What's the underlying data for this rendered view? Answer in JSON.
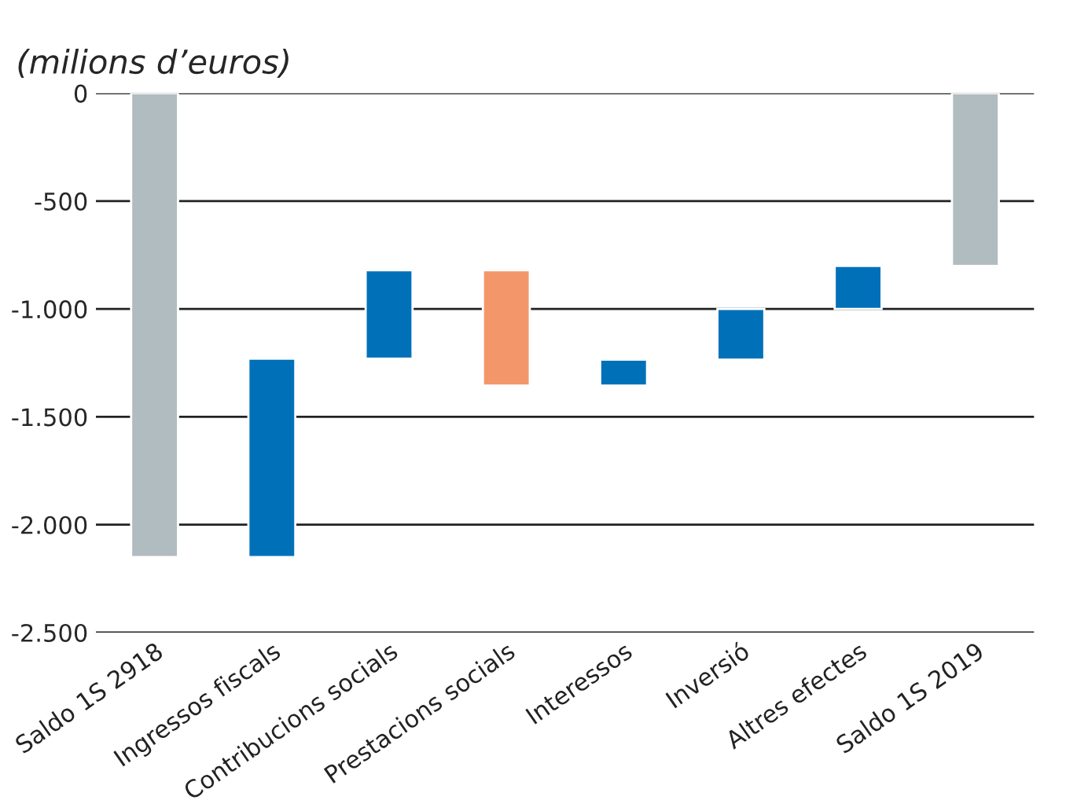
{
  "chart_data": {
    "type": "bar",
    "subtitle": "(milions d’euros)",
    "categories": [
      "Saldo 1S 2918",
      "Ingressos fiscals",
      "Contribucions socials",
      "Prestacions socials",
      "Interessos",
      "Inversió",
      "Altres efectes",
      "Saldo 1S 2019"
    ],
    "base": [
      0,
      -2150,
      -1230,
      -820,
      -1355,
      -1235,
      -1000,
      0
    ],
    "values": [
      -2150,
      920,
      410,
      -535,
      120,
      235,
      200,
      -800
    ],
    "colors": [
      "#b1bcc1",
      "#0071b9",
      "#0071b9",
      "#f3976a",
      "#0071b9",
      "#0071b9",
      "#0071b9",
      "#b1bcc1"
    ],
    "ylim": [
      -2500,
      0
    ],
    "yticks": [
      0,
      -500,
      {
        "value": -1000,
        "label": "-1.000"
      },
      {
        "value": -1500,
        "label": "-1.500"
      },
      {
        "value": -2000,
        "label": "-2.000"
      },
      {
        "value": -2500,
        "label": "-2.500"
      }
    ],
    "grid": "y",
    "legend": false
  }
}
